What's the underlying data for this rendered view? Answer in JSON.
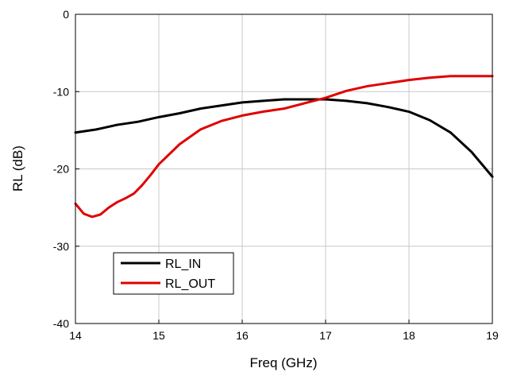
{
  "chart_data": {
    "type": "line",
    "xlabel": "Freq (GHz)",
    "ylabel": "RL (dB)",
    "xlim": [
      14,
      19
    ],
    "ylim": [
      -40,
      0
    ],
    "xticks": [
      14,
      15,
      16,
      17,
      18,
      19
    ],
    "yticks": [
      0,
      -10,
      -20,
      -30,
      -40
    ],
    "grid": true,
    "legend_position": "bottom-left",
    "series": [
      {
        "name": "RL_IN",
        "color": "#000000",
        "x": [
          14.0,
          14.25,
          14.5,
          14.75,
          15.0,
          15.25,
          15.5,
          15.75,
          16.0,
          16.25,
          16.5,
          16.75,
          17.0,
          17.25,
          17.5,
          17.75,
          18.0,
          18.25,
          18.5,
          18.75,
          19.0
        ],
        "y": [
          -15.3,
          -14.9,
          -14.3,
          -13.9,
          -13.3,
          -12.8,
          -12.2,
          -11.8,
          -11.4,
          -11.2,
          -11.0,
          -11.0,
          -11.0,
          -11.2,
          -11.5,
          -12.0,
          -12.6,
          -13.7,
          -15.3,
          -17.8,
          -21.0
        ]
      },
      {
        "name": "RL_OUT",
        "color": "#e00000",
        "x": [
          14.0,
          14.1,
          14.2,
          14.3,
          14.4,
          14.5,
          14.6,
          14.7,
          14.8,
          14.9,
          15.0,
          15.25,
          15.5,
          15.75,
          16.0,
          16.25,
          16.5,
          16.75,
          17.0,
          17.25,
          17.5,
          17.75,
          18.0,
          18.25,
          18.5,
          18.75,
          19.0
        ],
        "y": [
          -24.5,
          -25.8,
          -26.2,
          -25.9,
          -25.0,
          -24.3,
          -23.8,
          -23.2,
          -22.1,
          -20.8,
          -19.4,
          -16.8,
          -14.9,
          -13.8,
          -13.1,
          -12.6,
          -12.2,
          -11.5,
          -10.8,
          -9.9,
          -9.3,
          -8.9,
          -8.5,
          -8.2,
          -8.0,
          -8.0,
          -8.0
        ]
      }
    ]
  }
}
